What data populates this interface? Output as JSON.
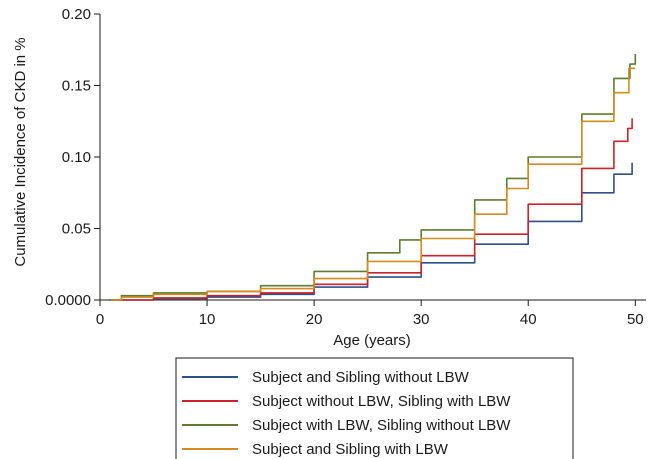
{
  "chart_data": {
    "type": "line",
    "title": "",
    "xlabel": "Age (years)",
    "ylabel": "Cumulative Incidence of CKD in %",
    "xlim": [
      0,
      51
    ],
    "ylim": [
      0,
      0.2
    ],
    "xticks": [
      0,
      10,
      20,
      30,
      40,
      50
    ],
    "xtick_labels": [
      "0",
      "10",
      "20",
      "30",
      "40",
      "50"
    ],
    "yticks": [
      0,
      0.05,
      0.1,
      0.15,
      0.2
    ],
    "ytick_labels": [
      "0.0000",
      "0.05",
      "0.10",
      "0.15",
      "0.20"
    ],
    "grid": false,
    "legend_position": "bottom",
    "step": true,
    "series": [
      {
        "name": "Subject and Sibling without LBW",
        "color": "#2f4e8c",
        "points": [
          [
            0.8,
            0
          ],
          [
            5,
            0.001
          ],
          [
            10,
            0.002
          ],
          [
            15,
            0.004
          ],
          [
            20,
            0.009
          ],
          [
            25,
            0.016
          ],
          [
            30,
            0.026
          ],
          [
            35,
            0.039
          ],
          [
            40,
            0.055
          ],
          [
            45,
            0.075
          ],
          [
            48,
            0.088
          ],
          [
            49.7,
            0.096
          ]
        ]
      },
      {
        "name": "Subject without LBW, Sibling with LBW",
        "color": "#cc2229",
        "points": [
          [
            1,
            0
          ],
          [
            5,
            0.0015
          ],
          [
            10,
            0.003
          ],
          [
            15,
            0.005
          ],
          [
            20,
            0.011
          ],
          [
            25,
            0.019
          ],
          [
            30,
            0.031
          ],
          [
            35,
            0.046
          ],
          [
            40,
            0.067
          ],
          [
            45,
            0.092
          ],
          [
            48,
            0.111
          ],
          [
            49.3,
            0.12
          ],
          [
            49.7,
            0.127
          ]
        ]
      },
      {
        "name": "Subject with LBW, Sibling without LBW",
        "color": "#5e7d2e",
        "points": [
          [
            1,
            0
          ],
          [
            2,
            0.003
          ],
          [
            5,
            0.005
          ],
          [
            10,
            0.006
          ],
          [
            15,
            0.01
          ],
          [
            20,
            0.02
          ],
          [
            25,
            0.033
          ],
          [
            28,
            0.042
          ],
          [
            30,
            0.049
          ],
          [
            35,
            0.07
          ],
          [
            38,
            0.085
          ],
          [
            40,
            0.1
          ],
          [
            45,
            0.13
          ],
          [
            48,
            0.155
          ],
          [
            49.5,
            0.165
          ],
          [
            50,
            0.172
          ]
        ]
      },
      {
        "name": "Subject and Sibling with LBW",
        "color": "#d48b1c",
        "points": [
          [
            1,
            0
          ],
          [
            2,
            0.002
          ],
          [
            5,
            0.004
          ],
          [
            10,
            0.006
          ],
          [
            15,
            0.008
          ],
          [
            20,
            0.015
          ],
          [
            25,
            0.027
          ],
          [
            30,
            0.043
          ],
          [
            35,
            0.06
          ],
          [
            38,
            0.078
          ],
          [
            40,
            0.095
          ],
          [
            45,
            0.125
          ],
          [
            48,
            0.145
          ],
          [
            49.4,
            0.162
          ],
          [
            50,
            0.162
          ]
        ]
      }
    ]
  }
}
